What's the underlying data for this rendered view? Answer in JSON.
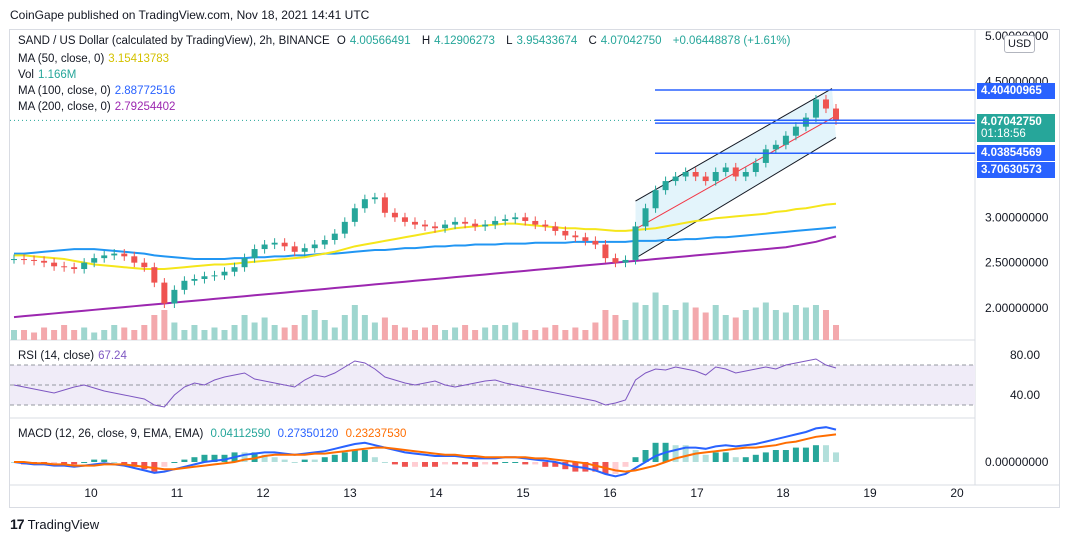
{
  "header": {
    "published": "CoinGape published on TradingView.com, Nov 18, 2021 14:41 UTC"
  },
  "symbol": {
    "title": "SAND / US Dollar (calculated by TradingView), 2h, BINANCE",
    "o_label": "O",
    "o": "4.00566491",
    "h_label": "H",
    "h": "4.12906273",
    "l_label": "L",
    "l": "3.95433674",
    "c_label": "C",
    "c": "4.07042750",
    "change": "+0.06448878 (+1.61%)"
  },
  "indicators": {
    "ma50": {
      "label": "MA (50, close, 0)",
      "value": "3.15413783",
      "color": "#d4c200"
    },
    "vol": {
      "label": "Vol",
      "value": "1.166M",
      "color": "#26a69a"
    },
    "ma100": {
      "label": "MA (100, close, 0)",
      "value": "2.88772516",
      "color": "#2962ff"
    },
    "ma200": {
      "label": "MA (200, close, 0)",
      "value": "2.79254402",
      "color": "#9c27b0"
    },
    "rsi": {
      "label": "RSI (14, close)",
      "value": "67.24",
      "color": "#7e57c2"
    },
    "macd": {
      "label": "MACD (12, 26, close, 9, EMA, EMA)",
      "v1": "0.04112590",
      "v2": "0.27350120",
      "v3": "0.23237530"
    }
  },
  "price_tags": {
    "top": "4.40400965",
    "current": "4.07042750",
    "countdown": "01:18:56",
    "mid": "4.03854569",
    "low": "3.70630573"
  },
  "currency_button": "USD",
  "footer": {
    "brand": "TradingView"
  },
  "chart_data": {
    "type": "candlestick",
    "price_axis": {
      "ticks": [
        "5.00000000",
        "4.50000000",
        "3.00000000",
        "2.50000000",
        "2.00000000"
      ],
      "tick_values": [
        5.0,
        4.5,
        3.0,
        2.5,
        2.0
      ]
    },
    "rsi_axis": {
      "ticks": [
        "80.00",
        "40.00"
      ],
      "tick_values": [
        80,
        40
      ]
    },
    "macd_axis": {
      "ticks": [
        "0.00000000"
      ],
      "tick_values": [
        0
      ]
    },
    "x_ticks": [
      "10",
      "11",
      "12",
      "13",
      "14",
      "15",
      "16",
      "17",
      "18",
      "19",
      "20"
    ],
    "closes": [
      2.54,
      2.53,
      2.52,
      2.5,
      2.46,
      2.45,
      2.43,
      2.5,
      2.55,
      2.58,
      2.6,
      2.57,
      2.5,
      2.45,
      2.28,
      2.05,
      2.2,
      2.3,
      2.32,
      2.35,
      2.36,
      2.4,
      2.45,
      2.55,
      2.65,
      2.7,
      2.72,
      2.68,
      2.62,
      2.66,
      2.7,
      2.75,
      2.82,
      2.95,
      3.1,
      3.2,
      3.22,
      3.05,
      3.0,
      2.95,
      2.92,
      2.9,
      2.88,
      2.92,
      2.95,
      2.93,
      2.9,
      2.92,
      2.96,
      2.98,
      3.0,
      2.96,
      2.92,
      2.9,
      2.85,
      2.8,
      2.78,
      2.74,
      2.7,
      2.55,
      2.5,
      2.53,
      2.9,
      3.1,
      3.3,
      3.4,
      3.45,
      3.5,
      3.45,
      3.4,
      3.5,
      3.55,
      3.45,
      3.5,
      3.6,
      3.75,
      3.8,
      3.9,
      4.0,
      4.1,
      4.3,
      4.2,
      4.07
    ],
    "price_levels": [
      4.40400965,
      4.0704275,
      4.03854569,
      3.70630573
    ],
    "volumes": [
      0.2,
      0.2,
      0.15,
      0.25,
      0.2,
      0.3,
      0.2,
      0.25,
      0.15,
      0.2,
      0.3,
      0.25,
      0.2,
      0.3,
      0.5,
      0.6,
      0.35,
      0.2,
      0.3,
      0.2,
      0.25,
      0.2,
      0.3,
      0.5,
      0.35,
      0.45,
      0.3,
      0.25,
      0.3,
      0.5,
      0.6,
      0.4,
      0.25,
      0.5,
      0.7,
      0.5,
      0.35,
      0.45,
      0.3,
      0.25,
      0.2,
      0.25,
      0.3,
      0.2,
      0.25,
      0.3,
      0.2,
      0.25,
      0.3,
      0.3,
      0.35,
      0.2,
      0.2,
      0.25,
      0.3,
      0.2,
      0.25,
      0.2,
      0.35,
      0.6,
      0.5,
      0.4,
      0.75,
      0.7,
      0.95,
      0.7,
      0.6,
      0.75,
      0.65,
      0.55,
      0.7,
      0.5,
      0.45,
      0.6,
      0.65,
      0.75,
      0.6,
      0.55,
      0.7,
      0.65,
      0.7,
      0.6,
      0.3
    ],
    "rsi": [
      50,
      48,
      46,
      44,
      42,
      45,
      48,
      50,
      47,
      44,
      42,
      40,
      38,
      36,
      30,
      28,
      40,
      48,
      52,
      50,
      55,
      58,
      60,
      62,
      56,
      54,
      52,
      50,
      48,
      55,
      60,
      58,
      62,
      68,
      74,
      72,
      66,
      58,
      55,
      52,
      50,
      52,
      54,
      50,
      48,
      50,
      52,
      54,
      55,
      52,
      50,
      48,
      46,
      44,
      42,
      40,
      38,
      36,
      34,
      30,
      32,
      35,
      55,
      62,
      66,
      65,
      68,
      66,
      64,
      60,
      68,
      66,
      62,
      64,
      66,
      68,
      66,
      70,
      72,
      74,
      76,
      70,
      67
    ],
    "macd_line": [
      0.0,
      -0.01,
      -0.02,
      -0.02,
      -0.03,
      -0.03,
      -0.04,
      -0.03,
      -0.02,
      -0.01,
      -0.02,
      -0.03,
      -0.05,
      -0.07,
      -0.09,
      -0.08,
      -0.06,
      -0.04,
      -0.02,
      0.0,
      0.01,
      0.02,
      0.04,
      0.06,
      0.07,
      0.08,
      0.08,
      0.07,
      0.06,
      0.07,
      0.08,
      0.09,
      0.11,
      0.13,
      0.15,
      0.16,
      0.14,
      0.12,
      0.1,
      0.08,
      0.07,
      0.06,
      0.05,
      0.05,
      0.05,
      0.04,
      0.03,
      0.03,
      0.03,
      0.04,
      0.04,
      0.03,
      0.02,
      0.01,
      0.0,
      -0.02,
      -0.04,
      -0.05,
      -0.07,
      -0.1,
      -0.12,
      -0.1,
      -0.05,
      0.0,
      0.05,
      0.08,
      0.1,
      0.12,
      0.12,
      0.11,
      0.13,
      0.14,
      0.13,
      0.14,
      0.15,
      0.17,
      0.19,
      0.21,
      0.23,
      0.25,
      0.28,
      0.29,
      0.27
    ],
    "macd_signal": [
      0.0,
      0.0,
      -0.01,
      -0.01,
      -0.02,
      -0.02,
      -0.03,
      -0.03,
      -0.03,
      -0.02,
      -0.02,
      -0.02,
      -0.03,
      -0.04,
      -0.05,
      -0.06,
      -0.06,
      -0.05,
      -0.04,
      -0.03,
      -0.02,
      -0.01,
      0.0,
      0.02,
      0.03,
      0.05,
      0.06,
      0.06,
      0.06,
      0.06,
      0.07,
      0.07,
      0.08,
      0.09,
      0.1,
      0.11,
      0.12,
      0.12,
      0.11,
      0.1,
      0.09,
      0.08,
      0.07,
      0.06,
      0.06,
      0.05,
      0.05,
      0.04,
      0.04,
      0.04,
      0.04,
      0.04,
      0.03,
      0.03,
      0.02,
      0.01,
      0.0,
      -0.01,
      -0.03,
      -0.05,
      -0.07,
      -0.08,
      -0.07,
      -0.05,
      -0.03,
      0.0,
      0.03,
      0.05,
      0.07,
      0.08,
      0.09,
      0.1,
      0.11,
      0.12,
      0.12,
      0.13,
      0.14,
      0.16,
      0.17,
      0.19,
      0.21,
      0.22,
      0.23
    ],
    "ma50": [
      2.58,
      2.58,
      2.57,
      2.56,
      2.55,
      2.54,
      2.52,
      2.5,
      2.48,
      2.47,
      2.46,
      2.45,
      2.44,
      2.43,
      2.43,
      2.43,
      2.44,
      2.45,
      2.46,
      2.47,
      2.48,
      2.48,
      2.49,
      2.5,
      2.51,
      2.52,
      2.53,
      2.54,
      2.55,
      2.56,
      2.58,
      2.6,
      2.62,
      2.65,
      2.68,
      2.7,
      2.72,
      2.74,
      2.76,
      2.78,
      2.8,
      2.82,
      2.84,
      2.86,
      2.88,
      2.89,
      2.9,
      2.91,
      2.92,
      2.93,
      2.93,
      2.92,
      2.91,
      2.9,
      2.89,
      2.88,
      2.88,
      2.87,
      2.87,
      2.86,
      2.85,
      2.85,
      2.86,
      2.87,
      2.88,
      2.9,
      2.92,
      2.94,
      2.96,
      2.97,
      2.99,
      3.0,
      3.01,
      3.02,
      3.03,
      3.04,
      3.06,
      3.07,
      3.09,
      3.1,
      3.12,
      3.14,
      3.15
    ],
    "ma100": [
      2.6,
      2.6,
      2.61,
      2.62,
      2.63,
      2.64,
      2.65,
      2.65,
      2.65,
      2.64,
      2.63,
      2.62,
      2.61,
      2.6,
      2.58,
      2.57,
      2.56,
      2.55,
      2.54,
      2.54,
      2.54,
      2.54,
      2.55,
      2.55,
      2.56,
      2.56,
      2.57,
      2.57,
      2.58,
      2.58,
      2.59,
      2.6,
      2.6,
      2.61,
      2.62,
      2.63,
      2.64,
      2.64,
      2.65,
      2.66,
      2.66,
      2.67,
      2.68,
      2.68,
      2.69,
      2.69,
      2.7,
      2.7,
      2.7,
      2.71,
      2.71,
      2.71,
      2.72,
      2.72,
      2.72,
      2.72,
      2.73,
      2.73,
      2.73,
      2.73,
      2.73,
      2.73,
      2.74,
      2.74,
      2.74,
      2.75,
      2.75,
      2.76,
      2.76,
      2.77,
      2.78,
      2.78,
      2.79,
      2.8,
      2.81,
      2.82,
      2.83,
      2.84,
      2.85,
      2.86,
      2.87,
      2.88,
      2.89
    ],
    "ma200": [
      1.9,
      1.91,
      1.92,
      1.93,
      1.94,
      1.95,
      1.96,
      1.97,
      1.98,
      1.99,
      2.0,
      2.01,
      2.02,
      2.03,
      2.04,
      2.05,
      2.06,
      2.07,
      2.08,
      2.09,
      2.1,
      2.11,
      2.12,
      2.13,
      2.14,
      2.15,
      2.16,
      2.17,
      2.18,
      2.19,
      2.2,
      2.21,
      2.22,
      2.23,
      2.24,
      2.25,
      2.26,
      2.27,
      2.28,
      2.29,
      2.3,
      2.31,
      2.32,
      2.33,
      2.34,
      2.35,
      2.36,
      2.37,
      2.38,
      2.39,
      2.4,
      2.41,
      2.42,
      2.43,
      2.44,
      2.45,
      2.46,
      2.47,
      2.48,
      2.49,
      2.5,
      2.51,
      2.52,
      2.53,
      2.54,
      2.55,
      2.56,
      2.57,
      2.58,
      2.59,
      2.6,
      2.61,
      2.62,
      2.63,
      2.64,
      2.65,
      2.66,
      2.67,
      2.69,
      2.71,
      2.73,
      2.76,
      2.79
    ]
  }
}
